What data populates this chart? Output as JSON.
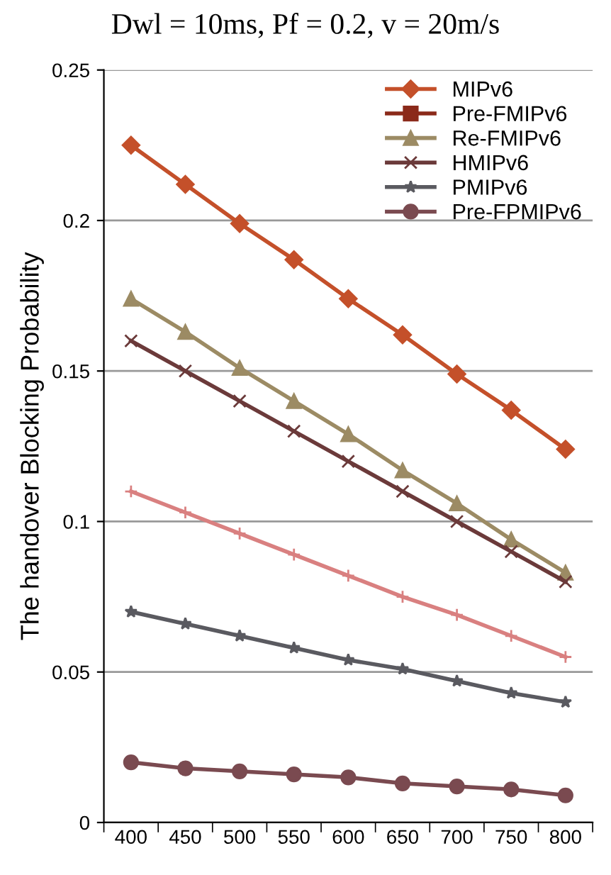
{
  "chart_data": {
    "type": "line",
    "title": "Dwl = 10ms, Pf = 0.2, v = 20m/s",
    "ylabel": "The handover Blocking Probability",
    "categories": [
      "400",
      "450",
      "500",
      "550",
      "600",
      "650",
      "700",
      "750",
      "800"
    ],
    "ylim": [
      0,
      0.25
    ],
    "yticks": [
      0,
      0.05,
      {
        "value": 0.1,
        "label": "0.1"
      },
      0.15,
      {
        "value": 0.2,
        "label": "0.2"
      },
      0.25
    ],
    "grid": "y",
    "legend": "top right",
    "line_style": "solid",
    "series": [
      {
        "name": "MIPv6",
        "color": "#c4502a",
        "marker": "diamond",
        "values": [
          0.225,
          0.212,
          0.199,
          0.187,
          0.174,
          0.162,
          0.149,
          0.137,
          0.124
        ]
      },
      {
        "name": "Pre-FMIPv6",
        "color": "#8b2a1a",
        "marker": "square",
        "values": [
          null,
          null,
          null,
          null,
          null,
          null,
          null,
          null,
          null
        ]
      },
      {
        "name": "Re-FMIPv6",
        "color": "#9c8b64",
        "marker": "triangle",
        "values": [
          0.174,
          0.163,
          0.151,
          0.14,
          0.129,
          0.117,
          0.106,
          0.094,
          0.083
        ]
      },
      {
        "name": "HMIPv6",
        "color": "#6b3a3a",
        "marker": "cross",
        "values": [
          0.16,
          0.15,
          0.14,
          0.13,
          0.12,
          0.11,
          0.1,
          0.09,
          0.08
        ]
      },
      {
        "name": "PMIPv6",
        "color": "#5a5a60",
        "marker": "star",
        "values": [
          0.07,
          0.066,
          0.062,
          0.058,
          0.054,
          0.051,
          0.047,
          0.043,
          0.04
        ]
      },
      {
        "name": "Pre-FPMIPv6",
        "color": "#7a4a50",
        "marker": "circle",
        "values": [
          0.02,
          0.018,
          0.017,
          0.016,
          0.015,
          0.013,
          0.012,
          0.011,
          0.009
        ]
      },
      {
        "color": "#d98080",
        "marker": "cross",
        "values": [
          0.11,
          0.103,
          0.096,
          0.089,
          0.082,
          0.075,
          0.069,
          0.062,
          0.055
        ]
      }
    ]
  }
}
